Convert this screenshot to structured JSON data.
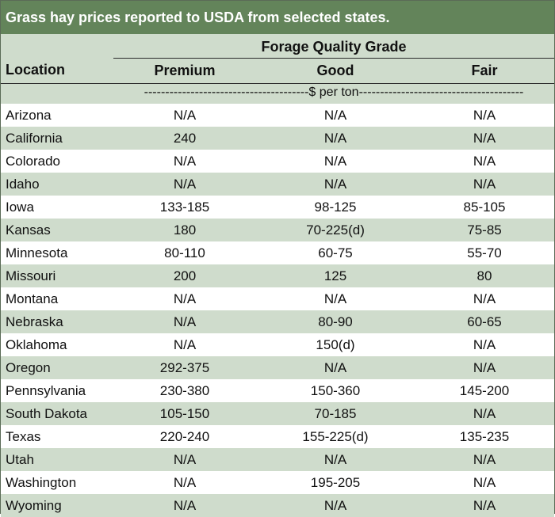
{
  "title": "Grass hay prices reported to USDA from selected states.",
  "header": {
    "location": "Location",
    "group": "Forage Quality Grade",
    "columns": [
      "Premium",
      "Good",
      "Fair"
    ],
    "units": "---------------------------------------$ per ton---------------------------------------"
  },
  "rows": [
    {
      "location": "Arizona",
      "premium": "N/A",
      "good": "N/A",
      "fair": "N/A"
    },
    {
      "location": "California",
      "premium": "240",
      "good": "N/A",
      "fair": "N/A"
    },
    {
      "location": "Colorado",
      "premium": "N/A",
      "good": "N/A",
      "fair": "N/A"
    },
    {
      "location": "Idaho",
      "premium": "N/A",
      "good": "N/A",
      "fair": "N/A"
    },
    {
      "location": "Iowa",
      "premium": "133-185",
      "good": "98-125",
      "fair": "85-105"
    },
    {
      "location": "Kansas",
      "premium": "180",
      "good": "70-225(d)",
      "fair": "75-85"
    },
    {
      "location": "Minnesota",
      "premium": "80-110",
      "good": "60-75",
      "fair": "55-70"
    },
    {
      "location": "Missouri",
      "premium": "200",
      "good": "125",
      "fair": "80"
    },
    {
      "location": "Montana",
      "premium": "N/A",
      "good": "N/A",
      "fair": "N/A"
    },
    {
      "location": "Nebraska",
      "premium": "N/A",
      "good": "80-90",
      "fair": "60-65"
    },
    {
      "location": "Oklahoma",
      "premium": "N/A",
      "good": "150(d)",
      "fair": "N/A"
    },
    {
      "location": "Oregon",
      "premium": "292-375",
      "good": "N/A",
      "fair": "N/A"
    },
    {
      "location": "Pennsylvania",
      "premium": "230-380",
      "good": "150-360",
      "fair": "145-200"
    },
    {
      "location": "South Dakota",
      "premium": "105-150",
      "good": "70-185",
      "fair": "N/A"
    },
    {
      "location": "Texas",
      "premium": "220-240",
      "good": "155-225(d)",
      "fair": "135-235"
    },
    {
      "location": "Utah",
      "premium": "N/A",
      "good": "N/A",
      "fair": "N/A"
    },
    {
      "location": "Washington",
      "premium": "N/A",
      "good": "195-205",
      "fair": "N/A"
    },
    {
      "location": "Wyoming",
      "premium": "N/A",
      "good": "N/A",
      "fair": "N/A"
    }
  ],
  "colors": {
    "title_bg": "#63845a",
    "band": "#cfdccc"
  }
}
